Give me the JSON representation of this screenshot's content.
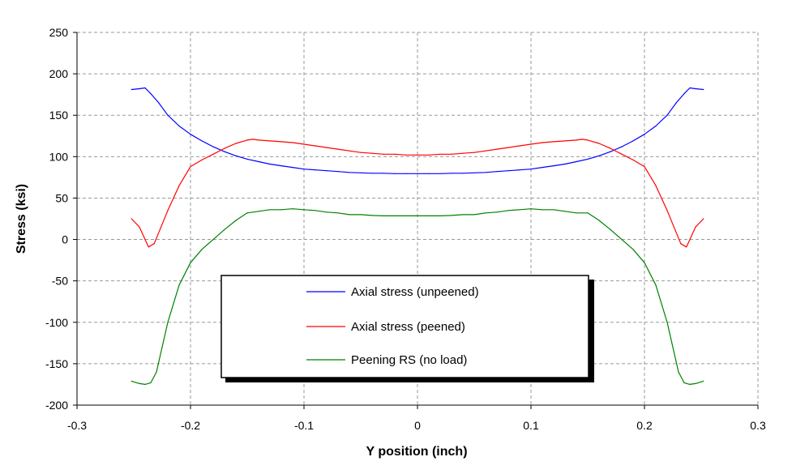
{
  "chart_data": {
    "type": "line",
    "title": "",
    "xlabel": "Y position (inch)",
    "ylabel": "Stress (ksi)",
    "xlim": [
      -0.3,
      0.3
    ],
    "ylim": [
      -200,
      250
    ],
    "xticks": [
      -0.3,
      -0.2,
      -0.1,
      0,
      0.1,
      0.2,
      0.3
    ],
    "xtick_labels": [
      "-0.3",
      "-0.2",
      "-0.1",
      "0",
      "0.1",
      "0.2",
      "0.3"
    ],
    "yticks": [
      -200,
      -150,
      -100,
      -50,
      0,
      50,
      100,
      150,
      200,
      250
    ],
    "ytick_labels": [
      "-200",
      "-150",
      "-100",
      "-50",
      "0",
      "50",
      "100",
      "150",
      "200",
      "250"
    ],
    "grid": true,
    "legend_position": "lower-center",
    "series": [
      {
        "name": "Axial stress (unpeened)",
        "color": "#0000ff",
        "x": [
          -0.252,
          -0.245,
          -0.24,
          -0.235,
          -0.228,
          -0.22,
          -0.21,
          -0.2,
          -0.19,
          -0.18,
          -0.17,
          -0.16,
          -0.15,
          -0.14,
          -0.13,
          -0.12,
          -0.11,
          -0.1,
          -0.09,
          -0.08,
          -0.07,
          -0.06,
          -0.05,
          -0.04,
          -0.03,
          -0.02,
          -0.01,
          0,
          0.01,
          0.02,
          0.03,
          0.04,
          0.05,
          0.06,
          0.07,
          0.08,
          0.09,
          0.1,
          0.11,
          0.12,
          0.13,
          0.14,
          0.15,
          0.16,
          0.17,
          0.18,
          0.19,
          0.2,
          0.21,
          0.22,
          0.228,
          0.235,
          0.24,
          0.245,
          0.252
        ],
        "y": [
          181,
          182,
          183,
          176,
          165,
          150,
          137,
          127,
          119,
          112,
          106,
          101,
          97,
          94,
          91,
          89,
          87,
          85,
          84,
          83,
          82,
          81,
          80.5,
          80,
          80,
          79.5,
          79.5,
          79.5,
          79.5,
          79.5,
          80,
          80,
          80.5,
          81,
          82,
          83,
          84,
          85,
          87,
          89,
          91,
          94,
          97,
          101,
          106,
          112,
          119,
          127,
          137,
          150,
          165,
          176,
          183,
          182,
          181
        ]
      },
      {
        "name": "Axial stress (peened)",
        "color": "#ff0000",
        "x": [
          -0.252,
          -0.245,
          -0.24,
          -0.237,
          -0.232,
          -0.22,
          -0.21,
          -0.2,
          -0.19,
          -0.18,
          -0.17,
          -0.16,
          -0.15,
          -0.145,
          -0.14,
          -0.13,
          -0.12,
          -0.11,
          -0.1,
          -0.09,
          -0.08,
          -0.07,
          -0.06,
          -0.05,
          -0.04,
          -0.03,
          -0.02,
          -0.01,
          0,
          0.01,
          0.02,
          0.03,
          0.04,
          0.05,
          0.06,
          0.07,
          0.08,
          0.09,
          0.1,
          0.11,
          0.12,
          0.13,
          0.14,
          0.145,
          0.15,
          0.16,
          0.17,
          0.18,
          0.19,
          0.2,
          0.21,
          0.22,
          0.232,
          0.237,
          0.24,
          0.245,
          0.252
        ],
        "y": [
          25,
          15,
          0,
          -9,
          -5,
          35,
          65,
          88,
          96,
          103,
          110,
          116,
          120,
          121,
          120,
          119,
          118,
          117,
          115,
          113,
          111,
          109,
          107,
          105,
          104,
          103,
          103,
          102,
          102,
          102,
          103,
          103,
          104,
          105,
          107,
          109,
          111,
          113,
          115,
          117,
          118,
          119,
          120,
          121,
          120,
          116,
          110,
          103,
          96,
          88,
          65,
          35,
          -5,
          -9,
          0,
          15,
          25
        ]
      },
      {
        "name": "Peening RS (no load)",
        "color": "#008000",
        "x": [
          -0.252,
          -0.245,
          -0.24,
          -0.235,
          -0.23,
          -0.22,
          -0.21,
          -0.2,
          -0.19,
          -0.18,
          -0.17,
          -0.16,
          -0.15,
          -0.14,
          -0.13,
          -0.12,
          -0.11,
          -0.1,
          -0.09,
          -0.08,
          -0.07,
          -0.06,
          -0.05,
          -0.04,
          -0.03,
          -0.02,
          -0.01,
          0,
          0.01,
          0.02,
          0.03,
          0.04,
          0.05,
          0.06,
          0.07,
          0.08,
          0.09,
          0.1,
          0.11,
          0.12,
          0.13,
          0.14,
          0.15,
          0.16,
          0.17,
          0.18,
          0.19,
          0.2,
          0.21,
          0.22,
          0.23,
          0.235,
          0.24,
          0.245,
          0.252
        ],
        "y": [
          -171,
          -174,
          -175,
          -173,
          -160,
          -100,
          -55,
          -28,
          -12,
          0,
          12,
          23,
          32,
          34,
          36,
          36,
          37,
          36,
          35,
          33,
          32,
          30,
          30,
          29,
          28.5,
          28.5,
          28.5,
          28.5,
          28.5,
          28.5,
          29,
          30,
          30,
          32,
          33,
          35,
          36,
          37,
          36,
          36,
          34,
          32,
          32,
          23,
          12,
          0,
          -12,
          -28,
          -55,
          -100,
          -160,
          -173,
          -175,
          -174,
          -171
        ]
      }
    ]
  }
}
